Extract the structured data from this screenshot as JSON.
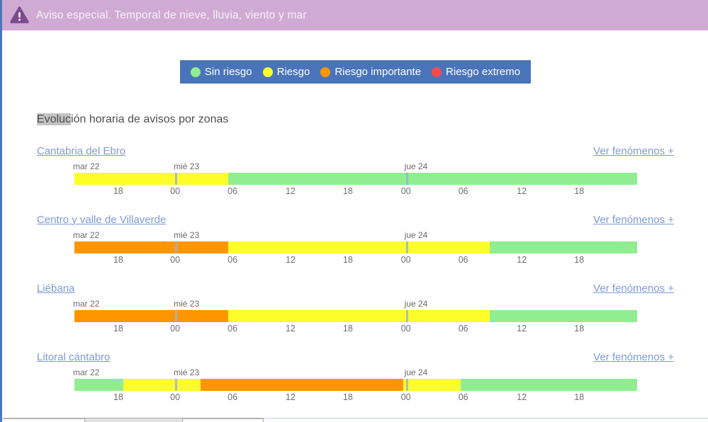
{
  "banner": {
    "icon": "warning-triangle-icon",
    "text": "Aviso especial. Temporal de nieve, lluvia, viento y mar",
    "background": "#cfabd4",
    "icon_color": "#7d4a8d"
  },
  "legend": {
    "background": "#4a74b9",
    "items": [
      {
        "label": "Sin riesgo",
        "color": "#90ee90"
      },
      {
        "label": "Riesgo",
        "color": "#fdfd2a"
      },
      {
        "label": "Riesgo importante",
        "color": "#ff9600"
      },
      {
        "label": "Riesgo extremo",
        "color": "#f64a4a"
      }
    ]
  },
  "section_title": {
    "highlighted": "Evoluc",
    "rest": "ión horaria de avisos por zonas"
  },
  "risk_colors": {
    "sin_riesgo": "#90ee90",
    "riesgo": "#fdfd2a",
    "riesgo_importante": "#ff9600",
    "riesgo_extremo": "#f64a4a"
  },
  "timeline_axis": {
    "day_labels": [
      {
        "label": "mar 22",
        "pos_pct": 0
      },
      {
        "label": "mié 23",
        "pos_pct": 17.9
      },
      {
        "label": "jue 24",
        "pos_pct": 58.9
      }
    ],
    "day_markers_pct": [
      17.9,
      58.9
    ],
    "ticks": [
      {
        "label": "18",
        "pos_pct": 7.8
      },
      {
        "label": "00",
        "pos_pct": 17.9
      },
      {
        "label": "06",
        "pos_pct": 28.1
      },
      {
        "label": "12",
        "pos_pct": 38.4
      },
      {
        "label": "18",
        "pos_pct": 48.6
      },
      {
        "label": "00",
        "pos_pct": 58.9
      },
      {
        "label": "06",
        "pos_pct": 69.1
      },
      {
        "label": "12",
        "pos_pct": 79.5
      },
      {
        "label": "18",
        "pos_pct": 89.7
      }
    ]
  },
  "zones": [
    {
      "name": "Cantabria del Ebro",
      "link": "Ver fenómenos +",
      "segments": [
        {
          "risk": "riesgo",
          "width_pct": 27.3
        },
        {
          "risk": "sin_riesgo",
          "width_pct": 72.7
        }
      ]
    },
    {
      "name": "Centro y valle de Villaverde",
      "link": "Ver fenómenos +",
      "segments": [
        {
          "risk": "riesgo_importante",
          "width_pct": 27.3
        },
        {
          "risk": "riesgo",
          "width_pct": 46.5
        },
        {
          "risk": "sin_riesgo",
          "width_pct": 26.2
        }
      ]
    },
    {
      "name": "Liébana",
      "link": "Ver fenómenos +",
      "segments": [
        {
          "risk": "riesgo_importante",
          "width_pct": 27.3
        },
        {
          "risk": "riesgo",
          "width_pct": 46.5
        },
        {
          "risk": "sin_riesgo",
          "width_pct": 26.2
        }
      ]
    },
    {
      "name": "Litoral cántabro",
      "link": "Ver fenómenos +",
      "segments": [
        {
          "risk": "sin_riesgo",
          "width_pct": 8.7
        },
        {
          "risk": "riesgo",
          "width_pct": 13.7
        },
        {
          "risk": "riesgo_importante",
          "width_pct": 36.0
        },
        {
          "risk": "riesgo",
          "width_pct": 10.2
        },
        {
          "risk": "sin_riesgo",
          "width_pct": 31.4
        }
      ]
    }
  ]
}
